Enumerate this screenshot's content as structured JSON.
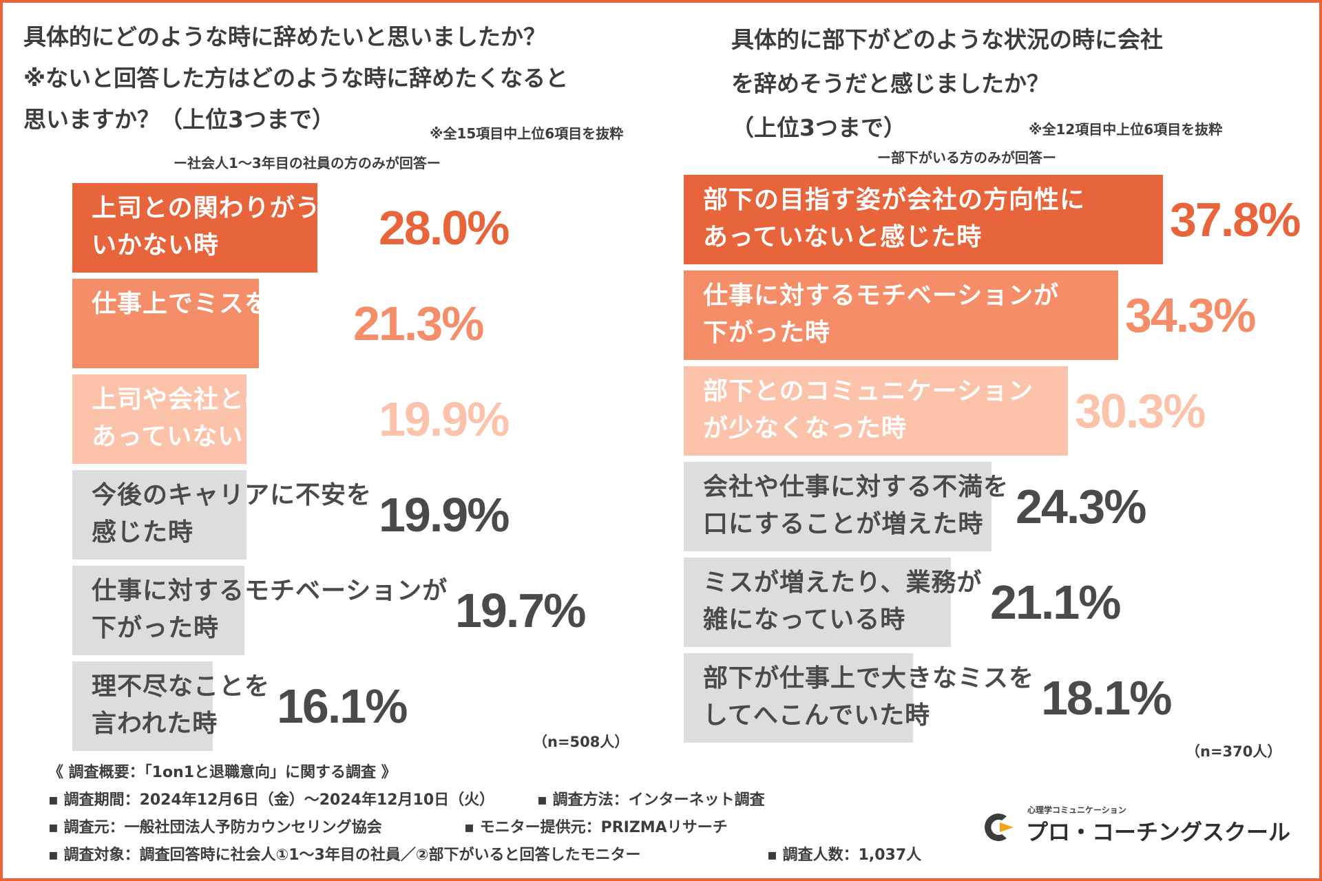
{
  "left": {
    "title": "具体的にどのような時に辞めたいと思いましたか？\n※ないと回答した方はどのような時に辞めたくなると\n思いますか？（上位3つまで）",
    "note": "※全15項目中上位6項目を抜粋",
    "respondents": "ー社会人1〜3年目の社員の方のみが回答ー",
    "sample": "（n=508人）"
  },
  "right": {
    "title": "具体的に部下がどのような状況の時に会社\nを辞めそうだと感じましたか？\n（上位3つまで）",
    "note": "※全12項目中上位6項目を抜粋",
    "respondents": "ー部下がいる方のみが回答ー",
    "sample": "（n=370人）"
  },
  "chart_data": [
    {
      "type": "bar",
      "orientation": "horizontal",
      "title": "具体的にどのような時に辞めたいと思いましたか？※ないと回答した方はどのような時に辞めたくなると思いますか？（上位3つまで）",
      "unit": "%",
      "xlim": [
        0,
        100
      ],
      "categories": [
        "上司との関わりがうまく\nいかない時",
        "仕事上でミスをした時",
        "上司や会社との方向性が\nあっていないと感じた時",
        "今後のキャリアに不安を\n感じた時",
        "仕事に対するモチベーションが\n下がった時",
        "理不尽なことを\n言われた時"
      ],
      "values": [
        28.0,
        21.3,
        19.9,
        19.9,
        19.7,
        16.1
      ],
      "value_labels": [
        "28.0%",
        "21.3%",
        "19.9%",
        "19.9%",
        "19.7%",
        "16.1%"
      ],
      "bar_colors": [
        "#E8643A",
        "#F58D68",
        "#FDC2AA",
        "#DDDDDD",
        "#DDDDDD",
        "#DDDDDD"
      ],
      "label_colors": [
        "#FFFFFF",
        "#FFFFFF",
        "#FFFFFF",
        "#4A4A4A",
        "#4A4A4A",
        "#4A4A4A"
      ],
      "value_colors": [
        "#E8643A",
        "#F58D68",
        "#FDC2AA",
        "#4A4A4A",
        "#4A4A4A",
        "#4A4A4A"
      ]
    },
    {
      "type": "bar",
      "orientation": "horizontal",
      "title": "具体的に部下がどのような状況の時に会社を辞めそうだと感じましたか？（上位3つまで）",
      "unit": "%",
      "xlim": [
        0,
        100
      ],
      "categories": [
        "部下の目指す姿が会社の方向性に\nあっていないと感じた時",
        "仕事に対するモチベーションが\n下がった時",
        "部下とのコミュニケーション\nが少なくなった時",
        "会社や仕事に対する不満を\n口にすることが増えた時",
        "ミスが増えたり、業務が\n雑になっている時",
        "部下が仕事上で大きなミスを\nしてへこんでいた時"
      ],
      "values": [
        37.8,
        34.3,
        30.3,
        24.3,
        21.1,
        18.1
      ],
      "value_labels": [
        "37.8%",
        "34.3%",
        "30.3%",
        "24.3%",
        "21.1%",
        "18.1%"
      ],
      "bar_colors": [
        "#E8643A",
        "#F58D68",
        "#FDC2AA",
        "#DDDDDD",
        "#DDDDDD",
        "#DDDDDD"
      ],
      "label_colors": [
        "#FFFFFF",
        "#FFFFFF",
        "#FFFFFF",
        "#4A4A4A",
        "#4A4A4A",
        "#4A4A4A"
      ],
      "value_colors": [
        "#E8643A",
        "#F58D68",
        "#FDC2AA",
        "#4A4A4A",
        "#4A4A4A",
        "#4A4A4A"
      ]
    }
  ],
  "footer": {
    "heading": "《 調査概要：「1on1と退職意向」に関する調査 》",
    "period": "▪ 調査期間：2024年12月6日（金）〜2024年12月10日（火）",
    "method": "▪ 調査方法：インターネット調査",
    "source": "▪ 調査元：一般社団法人予防カウンセリング協会",
    "provider": "▪ モニター提供元：PRIZMAリサーチ",
    "target": "▪ 調査対象：調査回答時に社会人①1〜3年目の社員／②部下がいると回答したモニター",
    "count": "▪ 調査人数：1,037人"
  },
  "logo": {
    "subtitle": "心理学コミュニケーション",
    "name": "プロ・コーチングスクール",
    "mark_color": "#3C3C3C",
    "accent_color": "#F2A31B"
  }
}
